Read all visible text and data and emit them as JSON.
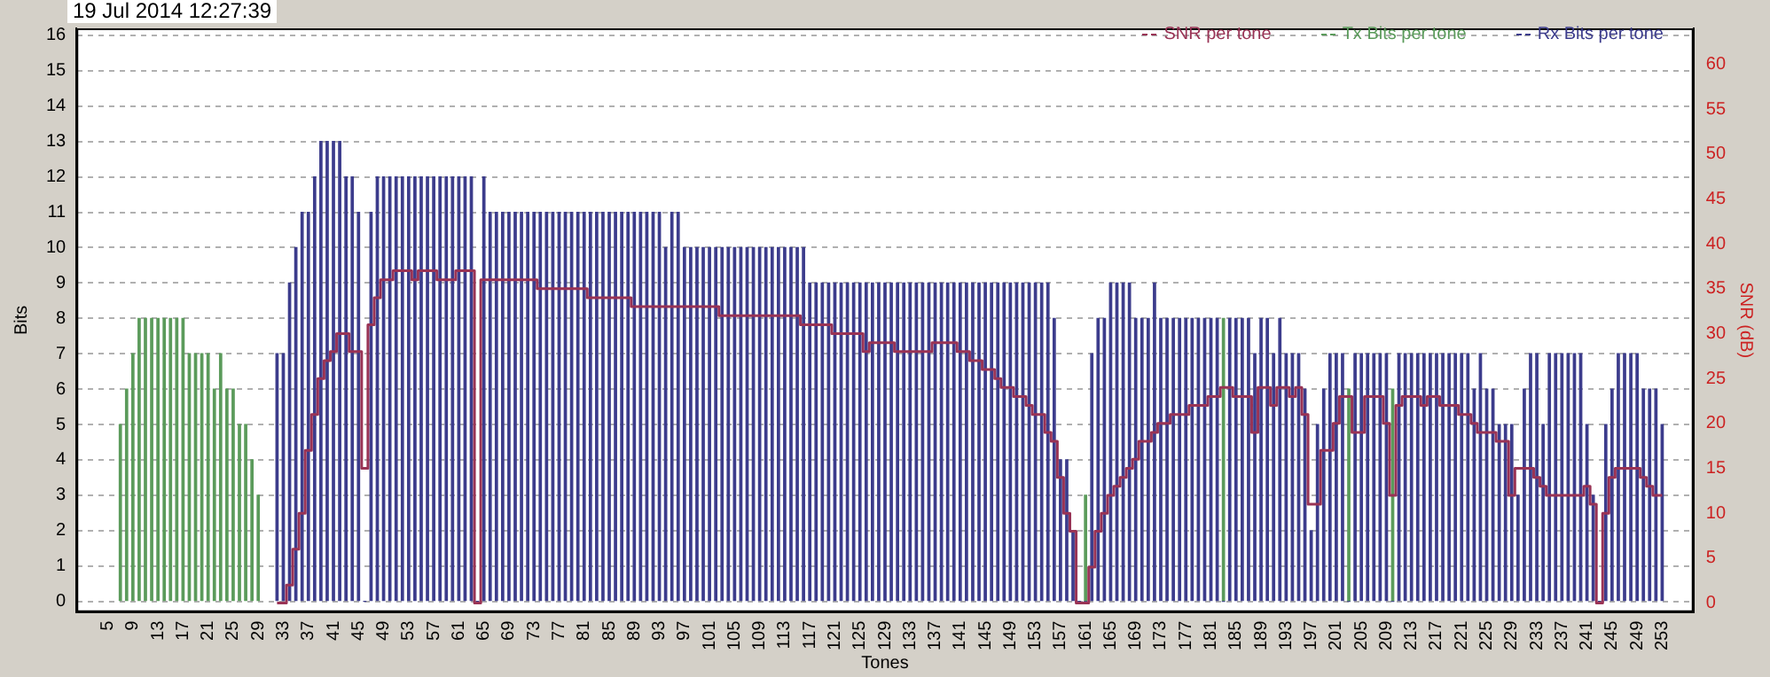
{
  "chart_data": {
    "type": "bar",
    "title": "19 Jul 2014  12:27:39",
    "xlabel": "Tones",
    "ylabel": "Bits",
    "y2label": "SNR (dB)",
    "x": [
      32,
      33,
      34,
      35,
      36,
      37,
      38,
      39,
      40,
      41,
      42,
      43,
      44,
      45,
      46,
      47,
      48,
      49,
      50,
      51,
      52,
      53,
      54,
      55,
      56,
      57,
      58,
      59,
      60,
      61,
      62,
      63,
      64,
      65,
      66,
      67,
      68,
      69,
      70,
      71,
      72,
      73,
      74,
      75,
      76,
      77,
      78,
      79,
      80,
      81,
      82,
      83,
      84,
      85,
      86,
      87,
      88,
      89,
      90,
      91,
      92,
      93,
      94,
      95,
      96,
      97,
      98,
      99,
      100,
      101,
      102,
      103,
      104,
      105,
      106,
      107,
      108,
      109,
      110,
      111,
      112,
      113,
      114,
      115,
      116,
      117,
      118,
      119,
      120,
      121,
      122,
      123,
      124,
      125,
      126,
      127,
      128,
      129,
      130,
      131,
      132,
      133,
      134,
      135,
      136,
      137,
      138,
      139,
      140,
      141,
      142,
      143,
      144,
      145,
      146,
      147,
      148,
      149,
      150,
      151,
      152,
      153,
      154,
      155,
      156,
      157,
      158,
      159,
      160,
      161,
      162,
      163,
      164,
      165,
      166,
      167,
      168,
      169,
      170,
      171,
      172,
      173,
      174,
      175,
      176,
      177,
      178,
      179,
      180,
      181,
      182,
      183,
      184,
      185,
      186,
      187,
      188,
      189,
      190,
      191,
      192,
      193,
      194,
      195,
      196,
      197,
      198,
      199,
      200,
      201,
      202,
      203,
      204,
      205,
      206,
      207,
      208,
      209,
      210,
      211,
      212,
      213,
      214,
      215,
      216,
      217,
      218,
      219,
      220,
      221,
      222,
      223,
      224,
      225,
      226,
      227,
      228,
      229,
      230,
      231,
      232,
      233,
      234,
      235,
      236,
      237,
      238,
      239,
      240,
      241,
      242,
      243,
      244,
      245,
      246,
      247,
      248,
      249,
      250,
      251,
      252,
      253
    ],
    "series": [
      {
        "name": "SNR per tone",
        "type": "step",
        "axis": "y2",
        "color": "#993355",
        "values": [
          0,
          0,
          2,
          6,
          10,
          17,
          21,
          25,
          27,
          28,
          30,
          30,
          28,
          28,
          15,
          31,
          34,
          36,
          36,
          37,
          37,
          37,
          36,
          37,
          37,
          37,
          36,
          36,
          36,
          37,
          37,
          37,
          0,
          36,
          36,
          36,
          36,
          36,
          36,
          36,
          36,
          36,
          35,
          35,
          35,
          35,
          35,
          35,
          35,
          35,
          34,
          34,
          34,
          34,
          34,
          34,
          34,
          33,
          33,
          33,
          33,
          33,
          33,
          33,
          33,
          33,
          33,
          33,
          33,
          33,
          33,
          32,
          32,
          32,
          32,
          32,
          32,
          32,
          32,
          32,
          32,
          32,
          32,
          32,
          31,
          31,
          31,
          31,
          31,
          30,
          30,
          30,
          30,
          30,
          28,
          29,
          29,
          29,
          29,
          28,
          28,
          28,
          28,
          28,
          28,
          29,
          29,
          29,
          29,
          28,
          28,
          27,
          27,
          26,
          26,
          25,
          24,
          24,
          23,
          23,
          22,
          21,
          21,
          19,
          18,
          14,
          10,
          8,
          0,
          0,
          4,
          8,
          10,
          12,
          13,
          14,
          15,
          16,
          18,
          18,
          19,
          20,
          20,
          21,
          21,
          21,
          22,
          22,
          22,
          23,
          23,
          24,
          24,
          23,
          23,
          23,
          19,
          24,
          24,
          22,
          24,
          24,
          23,
          24,
          21,
          11,
          11,
          17,
          17,
          20,
          23,
          23,
          19,
          19,
          23,
          23,
          23,
          20,
          12,
          22,
          23,
          23,
          23,
          22,
          23,
          23,
          22,
          22,
          22,
          21,
          21,
          20,
          19,
          19,
          19,
          18,
          18,
          12,
          15,
          15,
          15,
          14,
          13,
          12,
          12,
          12,
          12,
          12,
          12,
          13,
          11,
          0,
          10,
          14,
          15,
          15,
          15,
          15,
          14,
          13,
          12,
          12
        ]
      },
      {
        "name": "Tx Bits per tone",
        "color": "#5b9b5b",
        "x": [
          7,
          8,
          9,
          10,
          11,
          12,
          13,
          14,
          15,
          16,
          17,
          18,
          19,
          20,
          21,
          22,
          23,
          24,
          25,
          26,
          27,
          28,
          29,
          161,
          183,
          203,
          210
        ],
        "values": [
          5,
          6,
          7,
          8,
          8,
          8,
          8,
          8,
          8,
          8,
          8,
          7,
          7,
          7,
          7,
          6,
          7,
          6,
          6,
          5,
          5,
          4,
          3,
          3,
          8,
          6,
          6
        ]
      },
      {
        "name": "Rx Bits per tone",
        "color": "#3c3c8c",
        "values": [
          7,
          7,
          9,
          10,
          11,
          11,
          12,
          13,
          13,
          13,
          13,
          12,
          12,
          11,
          0,
          11,
          12,
          12,
          12,
          12,
          12,
          12,
          12,
          12,
          12,
          12,
          12,
          12,
          12,
          12,
          12,
          12,
          0,
          12,
          11,
          11,
          11,
          11,
          11,
          11,
          11,
          11,
          11,
          11,
          11,
          11,
          11,
          11,
          11,
          11,
          11,
          11,
          11,
          11,
          11,
          11,
          11,
          11,
          11,
          11,
          11,
          11,
          10,
          11,
          11,
          10,
          10,
          10,
          10,
          10,
          10,
          10,
          10,
          10,
          10,
          10,
          10,
          10,
          10,
          10,
          10,
          10,
          10,
          10,
          10,
          9,
          9,
          9,
          9,
          9,
          9,
          9,
          9,
          9,
          9,
          9,
          9,
          9,
          9,
          9,
          9,
          9,
          9,
          9,
          9,
          9,
          9,
          9,
          9,
          9,
          9,
          9,
          9,
          9,
          9,
          9,
          9,
          9,
          9,
          9,
          9,
          9,
          9,
          9,
          8,
          4,
          4,
          2,
          0,
          0,
          7,
          8,
          8,
          9,
          9,
          9,
          9,
          8,
          8,
          8,
          9,
          8,
          8,
          8,
          8,
          8,
          8,
          8,
          8,
          8,
          8,
          0,
          8,
          8,
          8,
          8,
          7,
          8,
          8,
          7,
          8,
          7,
          7,
          7,
          6,
          2,
          5,
          6,
          7,
          7,
          7,
          0,
          7,
          7,
          7,
          7,
          7,
          7,
          0,
          7,
          7,
          7,
          7,
          7,
          7,
          7,
          7,
          7,
          7,
          7,
          7,
          6,
          7,
          6,
          6,
          5,
          5,
          5,
          3,
          6,
          7,
          7,
          5,
          7,
          7,
          7,
          7,
          7,
          7,
          5,
          3,
          0,
          5,
          6,
          7,
          7,
          7,
          7,
          6,
          6,
          6,
          5
        ]
      }
    ],
    "xlim": [
      0,
      258
    ],
    "xticks": [
      5,
      9,
      13,
      17,
      21,
      25,
      29,
      33,
      37,
      41,
      45,
      49,
      53,
      57,
      61,
      65,
      69,
      73,
      77,
      81,
      85,
      89,
      93,
      97,
      101,
      105,
      109,
      113,
      117,
      121,
      125,
      129,
      133,
      137,
      141,
      145,
      149,
      153,
      157,
      161,
      165,
      169,
      173,
      177,
      181,
      185,
      189,
      193,
      197,
      201,
      205,
      209,
      213,
      217,
      221,
      225,
      229,
      233,
      237,
      241,
      245,
      249,
      253
    ],
    "ylim": [
      -0.3,
      16.2
    ],
    "yticks": [
      0,
      1,
      2,
      3,
      4,
      5,
      6,
      7,
      8,
      9,
      10,
      11,
      12,
      13,
      14,
      15,
      16
    ],
    "y2lim": [
      -1,
      64
    ],
    "y2ticks": [
      0,
      5,
      10,
      15,
      20,
      25,
      30,
      35,
      40,
      45,
      50,
      55,
      60
    ],
    "grid": "y",
    "legend": "top right"
  }
}
